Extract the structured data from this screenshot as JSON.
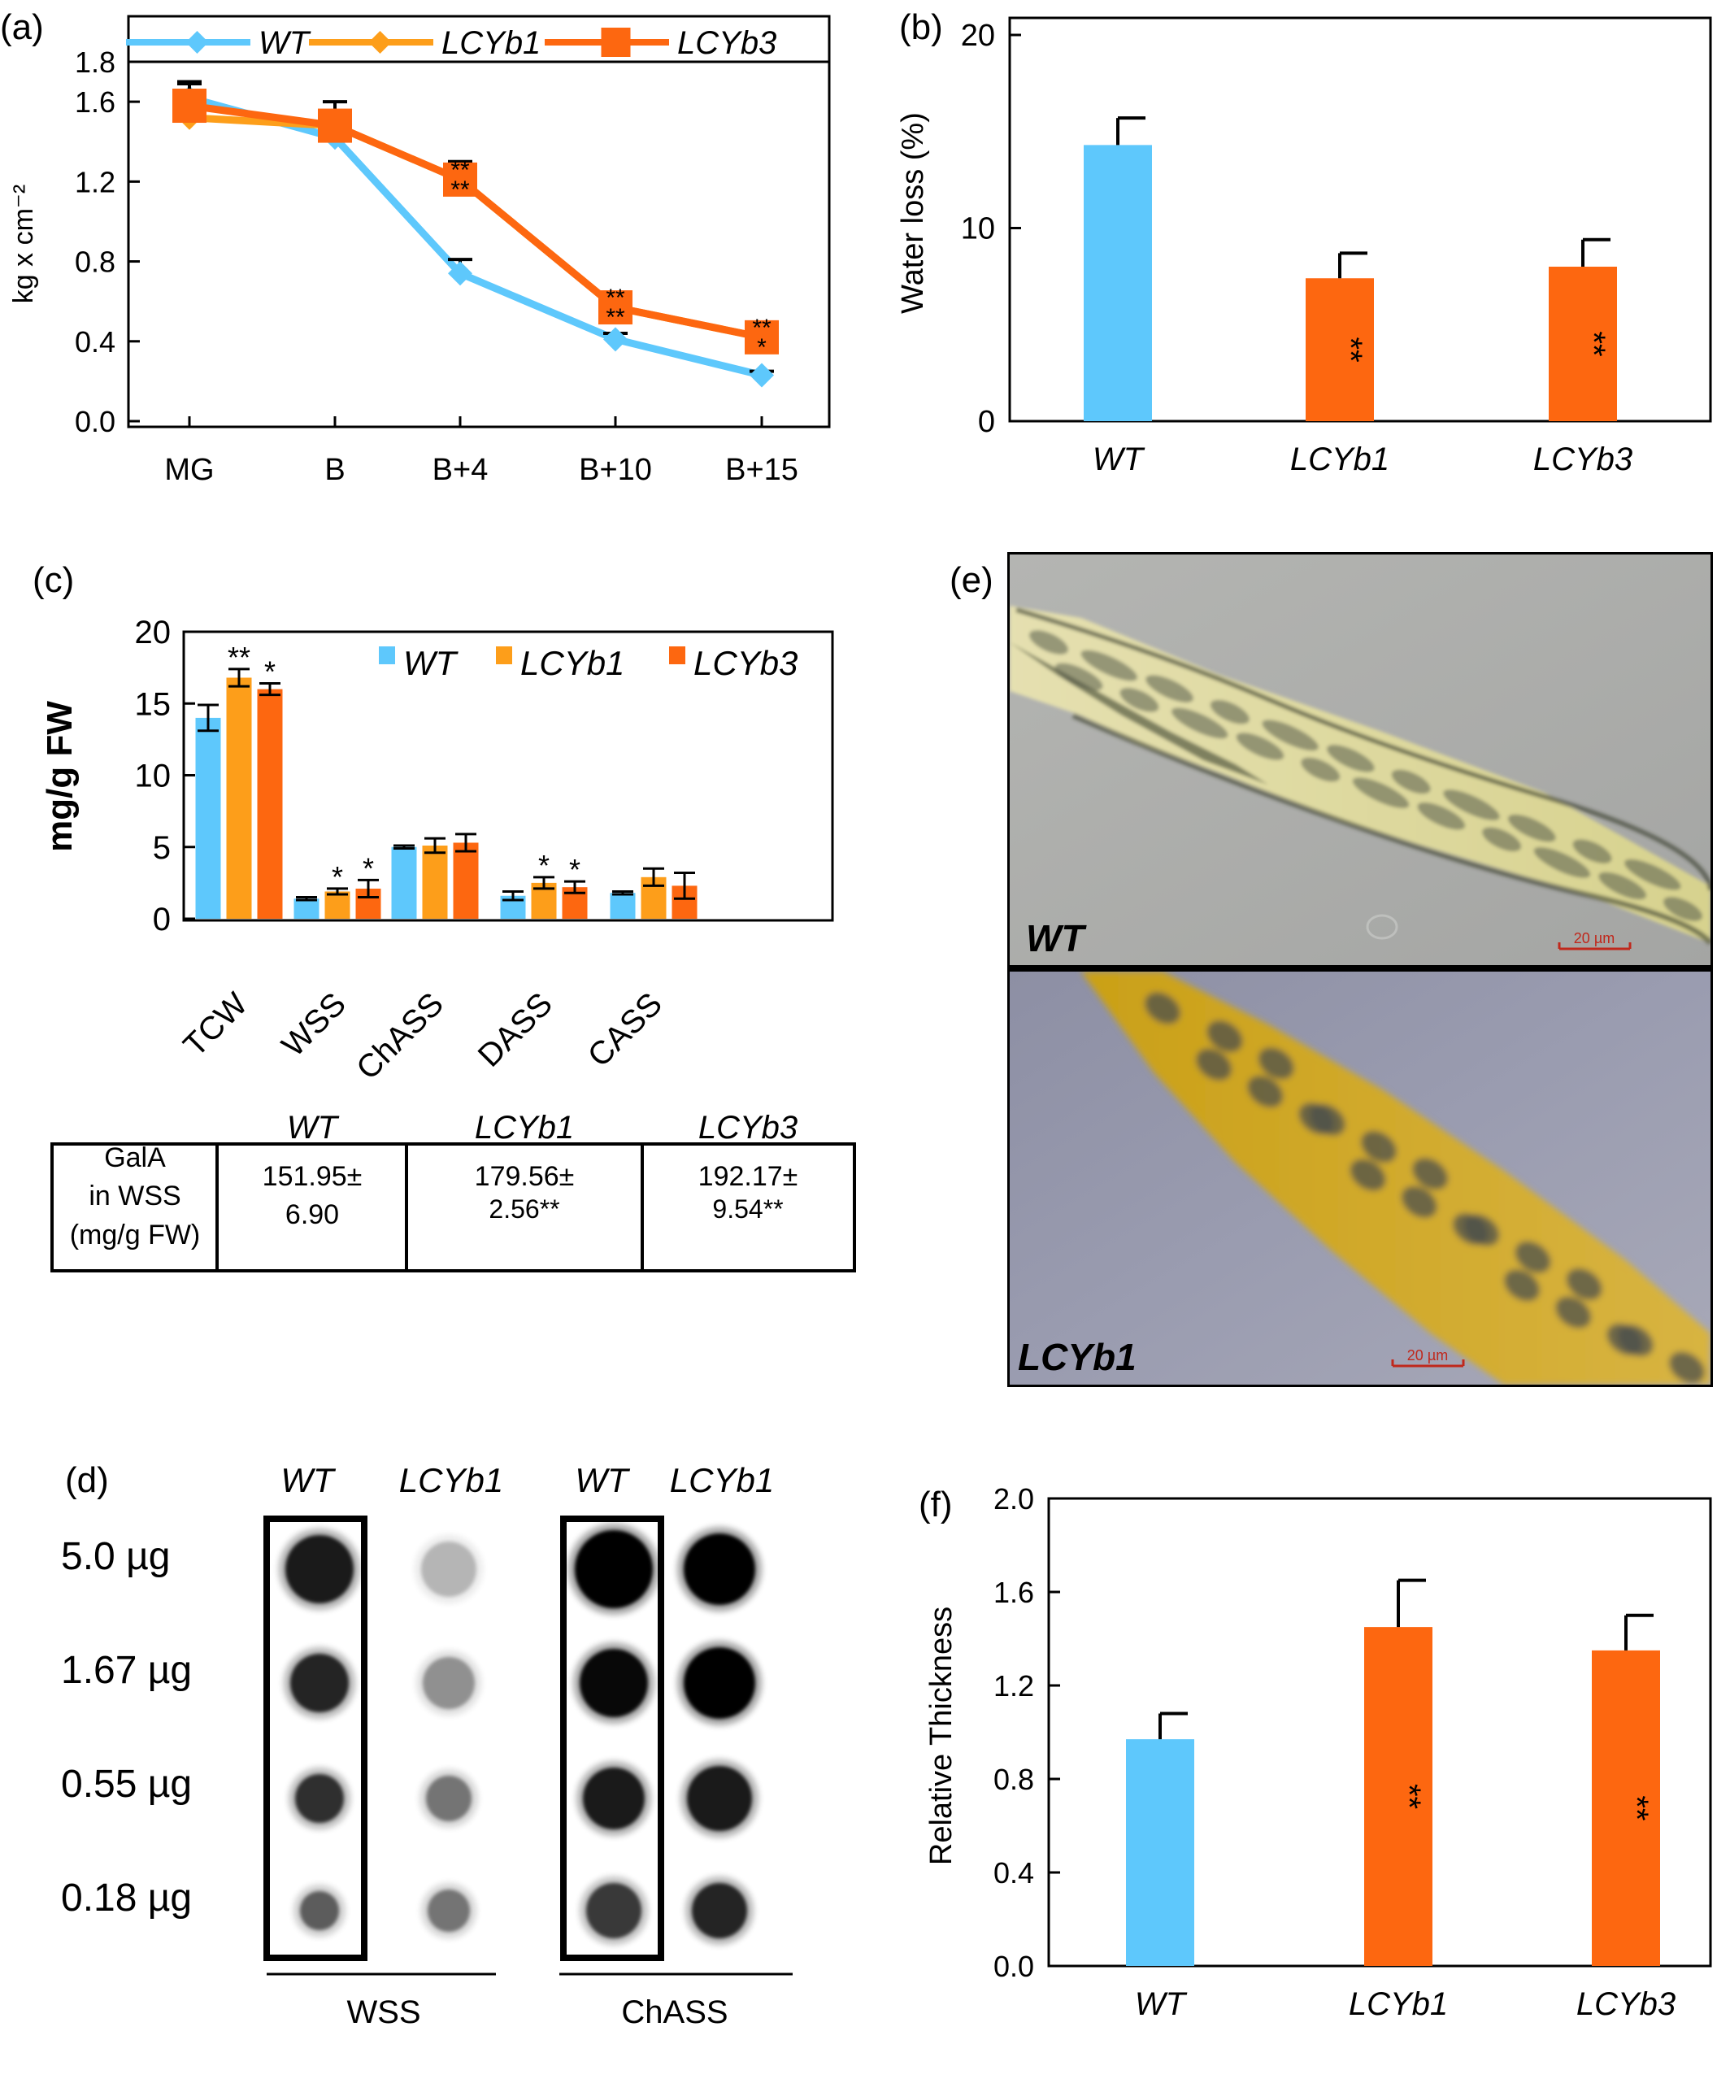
{
  "colors": {
    "wt": "#5ec8fc",
    "lcyb1": "#fd9e1a",
    "lcyb3": "#fd6710",
    "black": "#000000"
  },
  "chart_data": [
    {
      "panel": "(a)",
      "type": "line",
      "ylabel": "kg x cm⁻²",
      "ylim": [
        0.0,
        1.8
      ],
      "yticks": [
        "0.0",
        "0.4",
        "0.8",
        "1.2",
        "1.6",
        "1.8"
      ],
      "categories": [
        "MG",
        "B",
        "B+4",
        "B+10",
        "B+15"
      ],
      "legend_position": "top",
      "series": [
        {
          "name": "WT",
          "values": [
            1.62,
            1.42,
            0.74,
            0.41,
            0.23
          ],
          "err": [
            0.07,
            0.04,
            0.07,
            0.03,
            0.02
          ],
          "marker": "diamond",
          "sig": [
            "",
            "",
            "",
            "",
            ""
          ]
        },
        {
          "name": "LCYb1",
          "values": [
            1.52,
            1.48,
            1.21,
            0.57,
            0.42
          ],
          "err": [
            0.05,
            0.05,
            0.05,
            0.05,
            0.05
          ],
          "marker": "diamond",
          "sig": [
            "",
            "",
            "",
            "",
            ""
          ]
        },
        {
          "name": "LCYb3",
          "values": [
            1.58,
            1.48,
            1.21,
            0.57,
            0.42
          ],
          "err": [
            0.12,
            0.12,
            0.09,
            0.05,
            0.07
          ],
          "marker": "square",
          "sig": [
            "",
            "",
            "**\n**",
            "**\n**",
            "**\n*"
          ]
        }
      ]
    },
    {
      "panel": "(b)",
      "type": "bar",
      "ylabel": "Water loss (%)",
      "ylim": [
        0,
        20
      ],
      "yticks": [
        "0",
        "10",
        "20"
      ],
      "categories": [
        "WT",
        "LCYb1",
        "LCYb3"
      ],
      "values": [
        14.3,
        7.4,
        8.0
      ],
      "err": [
        1.4,
        1.3,
        1.4
      ],
      "sig": [
        "",
        "**",
        "**"
      ]
    },
    {
      "panel": "(c)",
      "type": "bar",
      "ylabel": "mg/g FW",
      "ylim": [
        0,
        20
      ],
      "yticks": [
        "0",
        "5",
        "10",
        "15",
        "20"
      ],
      "categories": [
        "TCW",
        "WSS",
        "ChASS",
        "DASS",
        "CASS"
      ],
      "legend_position": "top-right",
      "series": [
        {
          "name": "WT",
          "values": [
            14.0,
            1.4,
            5.0,
            1.6,
            1.8
          ],
          "err": [
            0.9,
            0.1,
            0.1,
            0.3,
            0.1
          ],
          "sig": [
            "",
            "",
            "",
            "",
            ""
          ]
        },
        {
          "name": "LCYb1",
          "values": [
            16.8,
            1.9,
            5.1,
            2.5,
            2.9
          ],
          "err": [
            0.6,
            0.2,
            0.5,
            0.4,
            0.6
          ],
          "sig": [
            "**",
            "*",
            "",
            "*",
            ""
          ]
        },
        {
          "name": "LCYb3",
          "values": [
            16.0,
            2.1,
            5.3,
            2.2,
            2.3
          ],
          "err": [
            0.4,
            0.6,
            0.6,
            0.4,
            0.9
          ],
          "sig": [
            "*",
            "*",
            "",
            "*",
            ""
          ]
        }
      ]
    },
    {
      "panel": "(f)",
      "type": "bar",
      "ylabel": "Relative Thickness",
      "ylim": [
        0.0,
        2.0
      ],
      "yticks": [
        "0.0",
        "0.4",
        "0.8",
        "1.2",
        "1.6",
        "2.0"
      ],
      "categories": [
        "WT",
        "LCYb1",
        "LCYb3"
      ],
      "values": [
        0.97,
        1.45,
        1.35
      ],
      "err": [
        0.11,
        0.2,
        0.15
      ],
      "sig": [
        "",
        "**",
        "**"
      ]
    }
  ],
  "panel_labels": {
    "a": "(a)",
    "b": "(b)",
    "c": "(c)",
    "d": "(d)",
    "e": "(e)",
    "f": "(f)"
  },
  "gala_table": {
    "headers": [
      "WT",
      "LCYb1",
      "LCYb3"
    ],
    "row_label": [
      "GalA",
      "in WSS",
      "(mg/g FW)"
    ],
    "cells": [
      [
        "151.95±",
        "6.90"
      ],
      [
        "179.56±",
        "2.56**"
      ],
      [
        "192.17±",
        "9.54**"
      ]
    ]
  },
  "dot_blot": {
    "column_labels": [
      "WT",
      "LCYb1",
      "WT",
      "LCYb1"
    ],
    "row_labels": [
      "5.0 µg",
      "1.67 µg",
      "0.55 µg",
      "0.18 µg"
    ],
    "group_labels": [
      "WSS",
      "ChASS"
    ],
    "intensity": [
      [
        0.85,
        0.22,
        1.0,
        1.0
      ],
      [
        0.8,
        0.35,
        0.95,
        1.0
      ],
      [
        0.75,
        0.45,
        0.85,
        0.85
      ],
      [
        0.55,
        0.45,
        0.7,
        0.8
      ]
    ]
  },
  "micrographs": {
    "top_label": "WT",
    "bottom_label": "LCYb1",
    "scale_bar": "20 µm"
  }
}
